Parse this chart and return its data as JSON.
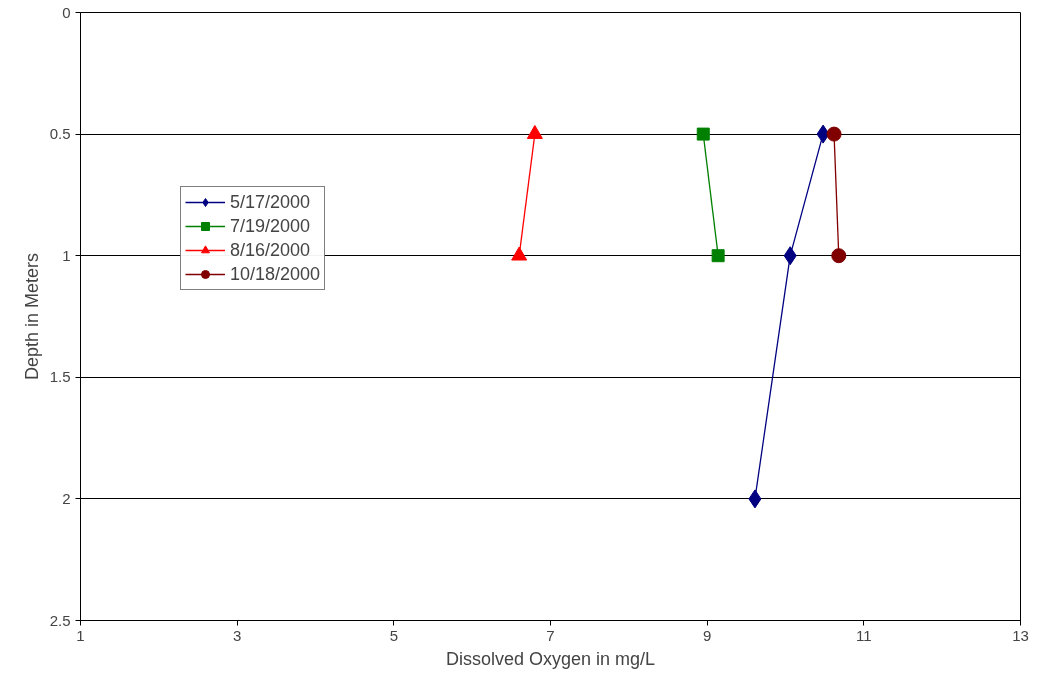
{
  "chart_data": {
    "type": "line",
    "xlabel": "Dissolved Oxygen in mg/L",
    "ylabel": "Depth in Meters",
    "xlim": [
      1,
      13
    ],
    "xticks": [
      1,
      3,
      5,
      7,
      9,
      11,
      13
    ],
    "ylim": [
      2.5,
      0
    ],
    "yticks": [
      0,
      0.5,
      1,
      1.5,
      2,
      2.5
    ],
    "grid": "y",
    "legend": "top left",
    "series": [
      {
        "name": "5/17/2000",
        "color": "#000080",
        "marker": "diamond",
        "x": [
          10.48,
          10.06,
          9.61
        ],
        "values": [
          0.5,
          1,
          2
        ]
      },
      {
        "name": "7/19/2000",
        "color": "#008000",
        "marker": "square",
        "x": [
          8.95,
          9.14
        ],
        "values": [
          0.5,
          1
        ]
      },
      {
        "name": "8/16/2000",
        "color": "#ff0000",
        "marker": "triangle",
        "x": [
          6.8,
          6.6
        ],
        "values": [
          0.5,
          1
        ]
      },
      {
        "name": "10/18/2000",
        "color": "#800000",
        "marker": "circle",
        "x": [
          10.62,
          10.68
        ],
        "values": [
          0.5,
          1
        ]
      }
    ]
  }
}
